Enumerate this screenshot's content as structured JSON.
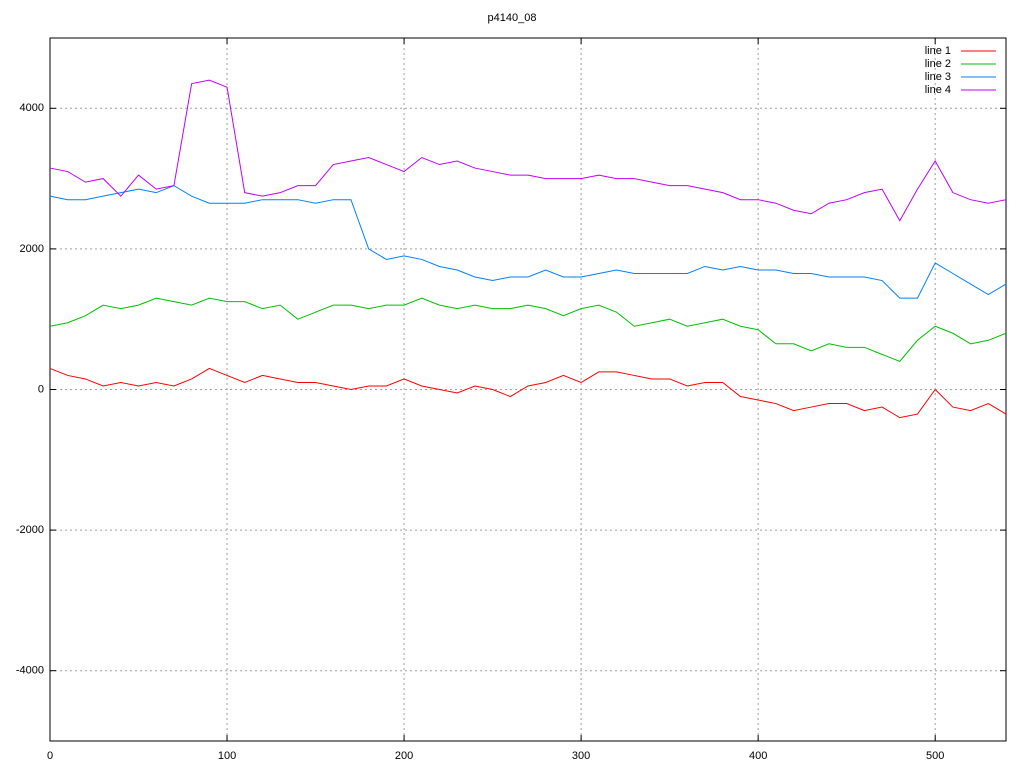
{
  "chart_data": {
    "type": "line",
    "title": "p4140_08",
    "x": [
      0,
      10,
      20,
      30,
      40,
      50,
      60,
      70,
      80,
      90,
      100,
      110,
      120,
      130,
      140,
      150,
      160,
      170,
      180,
      190,
      200,
      210,
      220,
      230,
      240,
      250,
      260,
      270,
      280,
      290,
      300,
      310,
      320,
      330,
      340,
      350,
      360,
      370,
      380,
      390,
      400,
      410,
      420,
      430,
      440,
      450,
      460,
      470,
      480,
      490,
      500,
      510,
      520,
      530,
      540
    ],
    "series": [
      {
        "name": "line 1",
        "color": "#ff0000",
        "values": [
          300,
          200,
          150,
          50,
          100,
          50,
          100,
          50,
          150,
          300,
          200,
          100,
          200,
          150,
          100,
          100,
          50,
          0,
          50,
          50,
          150,
          50,
          0,
          -50,
          50,
          0,
          -100,
          50,
          100,
          200,
          100,
          250,
          250,
          200,
          150,
          150,
          50,
          100,
          100,
          -100,
          -150,
          -200,
          -300,
          -250,
          -200,
          -200,
          -300,
          -250,
          -400,
          -350,
          0,
          -250,
          -300,
          -200,
          -350
        ]
      },
      {
        "name": "line 2",
        "color": "#00c000",
        "values": [
          900,
          950,
          1050,
          1200,
          1150,
          1200,
          1300,
          1250,
          1200,
          1300,
          1250,
          1250,
          1150,
          1200,
          1000,
          1100,
          1200,
          1200,
          1150,
          1200,
          1200,
          1300,
          1200,
          1150,
          1200,
          1150,
          1150,
          1200,
          1150,
          1050,
          1150,
          1200,
          1100,
          900,
          950,
          1000,
          900,
          950,
          1000,
          900,
          850,
          650,
          650,
          550,
          650,
          600,
          600,
          500,
          400,
          700,
          900,
          800,
          650,
          700,
          800
        ]
      },
      {
        "name": "line 3",
        "color": "#0080ff",
        "values": [
          2750,
          2700,
          2700,
          2750,
          2800,
          2850,
          2800,
          2900,
          2750,
          2650,
          2650,
          2650,
          2700,
          2700,
          2700,
          2650,
          2700,
          2700,
          2000,
          1850,
          1900,
          1850,
          1750,
          1700,
          1600,
          1550,
          1600,
          1600,
          1700,
          1600,
          1600,
          1650,
          1700,
          1650,
          1650,
          1650,
          1650,
          1750,
          1700,
          1750,
          1700,
          1700,
          1650,
          1650,
          1600,
          1600,
          1600,
          1550,
          1300,
          1300,
          1800,
          1650,
          1500,
          1350,
          1500
        ]
      },
      {
        "name": "line 4",
        "color": "#c000ff",
        "values": [
          3150,
          3100,
          2950,
          3000,
          2750,
          3050,
          2850,
          2900,
          4350,
          4400,
          4300,
          2800,
          2750,
          2800,
          2900,
          2900,
          3200,
          3250,
          3300,
          3200,
          3100,
          3300,
          3200,
          3250,
          3150,
          3100,
          3050,
          3050,
          3000,
          3000,
          3000,
          3050,
          3000,
          3000,
          2950,
          2900,
          2900,
          2850,
          2800,
          2700,
          2700,
          2650,
          2550,
          2500,
          2650,
          2700,
          2800,
          2850,
          2400,
          2850,
          3250,
          2800,
          2700,
          2650,
          2700
        ]
      }
    ],
    "xlim": [
      0,
      540
    ],
    "xticks": [
      0,
      100,
      200,
      300,
      400,
      500
    ],
    "ylim": [
      -5000,
      5000
    ],
    "yticks": [
      -4000,
      -2000,
      0,
      2000,
      4000
    ],
    "grid": true,
    "legend": "top right"
  }
}
